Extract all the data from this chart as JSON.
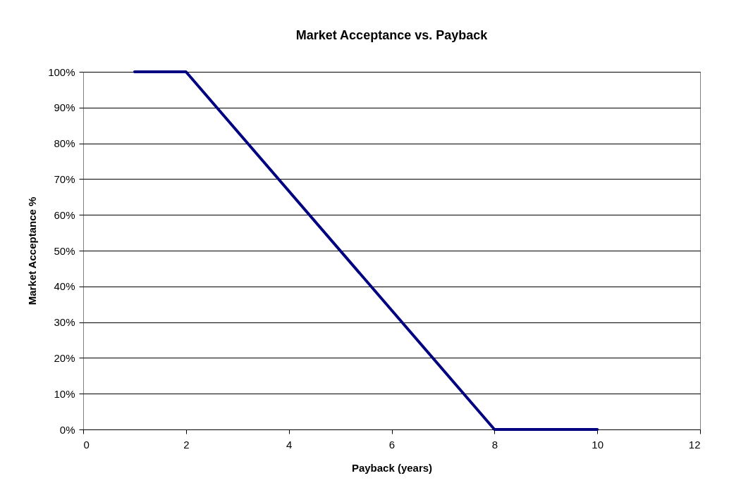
{
  "chart_data": {
    "type": "line",
    "title": "Market Acceptance vs. Payback",
    "xlabel": "Payback (years)",
    "ylabel": "Market Acceptance %",
    "x": [
      1,
      2,
      8,
      10
    ],
    "series": [
      {
        "color": "#000080",
        "values": [
          100,
          100,
          0,
          0
        ]
      }
    ],
    "xlim": [
      0,
      12
    ],
    "xticks": [
      0,
      2,
      4,
      6,
      8,
      10,
      12
    ],
    "ylim": [
      0,
      100
    ],
    "yticks": [
      {
        "value": 0,
        "label": "0%"
      },
      {
        "value": 10,
        "label": "10%"
      },
      {
        "value": 20,
        "label": "20%"
      },
      {
        "value": 30,
        "label": "30%"
      },
      {
        "value": 40,
        "label": "40%"
      },
      {
        "value": 50,
        "label": "50%"
      },
      {
        "value": 60,
        "label": "60%"
      },
      {
        "value": 70,
        "label": "70%"
      },
      {
        "value": 80,
        "label": "80%"
      },
      {
        "value": 90,
        "label": "90%"
      },
      {
        "value": 100,
        "label": "100%"
      }
    ],
    "grid": "y",
    "marker": "none",
    "line_style": "solid"
  }
}
